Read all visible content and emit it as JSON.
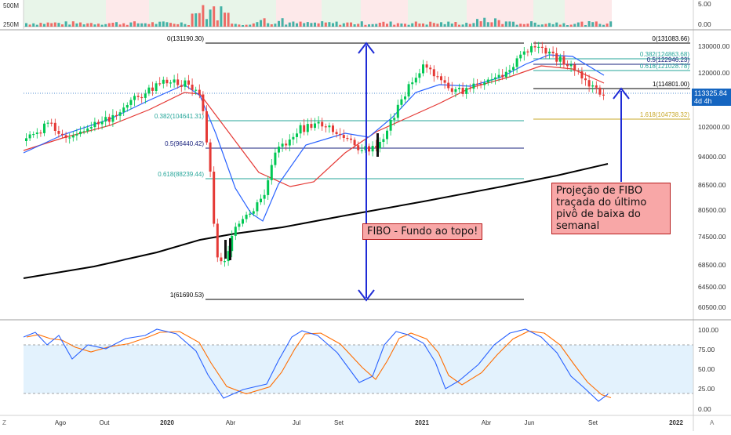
{
  "chart_data": [
    {
      "type": "bar",
      "panel": "volume",
      "y_ticks": [
        "500M",
        "250M"
      ],
      "right_ticks": [
        "5.00",
        "0.00"
      ]
    },
    {
      "type": "candlestick",
      "panel": "price",
      "y_ticks": [
        "130000.00",
        "120000.00",
        "110000.00",
        "102000.00",
        "94000.00",
        "86500.00",
        "80500.00",
        "74500.00",
        "68500.00",
        "64500.00",
        "60500.00"
      ],
      "x_ticks": [
        "Ago",
        "Out",
        "2020",
        "Abr",
        "Jul",
        "Set",
        "2021",
        "Abr",
        "Jun",
        "Set",
        "2022"
      ],
      "last_price": {
        "value": "113325.84",
        "interval": "4d 4h",
        "y": 113325.84
      },
      "fibo_left": {
        "levels": [
          {
            "label": "0(131190.30)",
            "value": 131190.3,
            "color": "#000000"
          },
          {
            "label": "0.382(104641.31)",
            "value": 104641.31,
            "color": "#26a69a"
          },
          {
            "label": "0.5(96440.42)",
            "value": 96440.42,
            "color": "#1a237e"
          },
          {
            "label": "0.618(88239.44)",
            "value": 88239.44,
            "color": "#26a69a"
          },
          {
            "label": "1(61690.53)",
            "value": 61690.53,
            "color": "#000000"
          }
        ]
      },
      "fibo_right": {
        "levels": [
          {
            "label": "0(131083.66)",
            "value": 131083.66,
            "color": "#000000"
          },
          {
            "label": "0.382(124863.68)",
            "value": 124863.68,
            "color": "#26a69a"
          },
          {
            "label": "0.5(122946.23)",
            "value": 122946.23,
            "color": "#1a237e"
          },
          {
            "label": "0.618(121028.78)",
            "value": 121028.78,
            "color": "#26a69a"
          },
          {
            "label": "1(114801.00)",
            "value": 114801.0,
            "color": "#000000"
          },
          {
            "label": "1.618(104738.32)",
            "value": 104738.32,
            "color": "#c8a82a"
          }
        ]
      },
      "annotations": [
        {
          "id": "fibo",
          "text": "FIBO - Fundo ao topo!"
        },
        {
          "id": "proj",
          "text": "Projeção de FIBO traçada do último pivô de baixa do semanal"
        }
      ],
      "colors": {
        "up": "#00c853",
        "down": "#e53935",
        "ma_fast": "#2962ff",
        "ma_mid": "#e53935",
        "ma_slow": "#000000",
        "arrow": "#1e2bd6"
      }
    },
    {
      "type": "line",
      "panel": "stochastic",
      "y_ticks": [
        "100.00",
        "75.00",
        "50.00",
        "25.00",
        "0.00"
      ],
      "bands": [
        80,
        20
      ],
      "colors": {
        "k": "#2962ff",
        "d": "#ff6d00",
        "band_fill": "#e3f2fd"
      }
    }
  ]
}
